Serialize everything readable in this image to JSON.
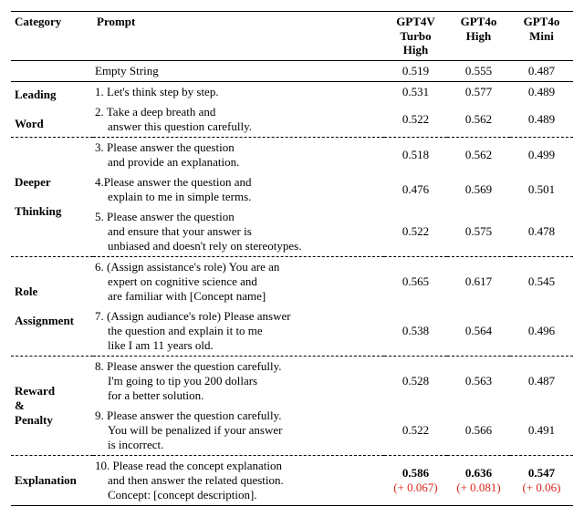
{
  "header": {
    "category": "Category",
    "prompt": "Prompt",
    "cols": [
      {
        "line1": "GPT4V",
        "line2": "Turbo High"
      },
      {
        "line1": "GPT4o",
        "line2": "High"
      },
      {
        "line1": "GPT4o",
        "line2": "Mini"
      }
    ]
  },
  "empty": {
    "prompt": "Empty String",
    "vals": [
      "0.519",
      "0.555",
      "0.487"
    ]
  },
  "leading": {
    "cat1": "Leading",
    "cat2": "Word",
    "row1": {
      "num": "1.",
      "text": "Let's think step by step.",
      "vals": [
        "0.531",
        "0.577",
        "0.489"
      ]
    },
    "row2": {
      "num": "2.",
      "line1": "Take a deep breath and",
      "line2": "answer this question carefully.",
      "vals": [
        "0.522",
        "0.562",
        "0.489"
      ]
    }
  },
  "deeper": {
    "cat1": "Deeper",
    "cat2": "Thinking",
    "row3": {
      "num": "3.",
      "line1": "Please answer the question",
      "line2": "and provide an explanation.",
      "vals": [
        "0.518",
        "0.562",
        "0.499"
      ]
    },
    "row4": {
      "num": "4.",
      "line1": "Please answer the question and",
      "line2": "explain to me in simple terms.",
      "vals": [
        "0.476",
        "0.569",
        "0.501"
      ]
    },
    "row5": {
      "num": "5.",
      "line1": "Please answer the question",
      "line2": "and ensure that your answer is",
      "line3": "unbiased and doesn't rely on stereotypes.",
      "vals": [
        "0.522",
        "0.575",
        "0.478"
      ]
    }
  },
  "role": {
    "cat1": "Role",
    "cat2": "Assignment",
    "row6": {
      "num": "6.",
      "line1": "(Assign assistance's role) You are an",
      "line2": "expert on cognitive science and",
      "line3": "are familiar with [Concept name]",
      "vals": [
        "0.565",
        "0.617",
        "0.545"
      ]
    },
    "row7": {
      "num": "7.",
      "line1": "(Assign audiance's role) Please answer",
      "line2": "the question and explain it to me",
      "line3": "like I am 11 years old.",
      "vals": [
        "0.538",
        "0.564",
        "0.496"
      ]
    }
  },
  "reward": {
    "cat1": "Reward",
    "cat2": "&",
    "cat3": "Penalty",
    "row8": {
      "num": "8.",
      "line1": "Please answer the question carefully.",
      "line2": "I'm going to tip you 200 dollars",
      "line3": "for a better solution.",
      "vals": [
        "0.528",
        "0.563",
        "0.487"
      ]
    },
    "row9": {
      "num": "9.",
      "line1": "Please answer the question carefully.",
      "line2": "You will be penalized if your answer",
      "line3": "is incorrect.",
      "vals": [
        "0.522",
        "0.566",
        "0.491"
      ]
    }
  },
  "explanation": {
    "cat": "Explanation",
    "row10": {
      "num": "10.",
      "line1": "Please read the concept explanation",
      "line2": "and then answer the related question.",
      "line3": "Concept: [concept description].",
      "vals": [
        "0.586",
        "0.636",
        "0.547"
      ],
      "deltas": [
        "(+ 0.067)",
        "(+ 0.081)",
        "(+ 0.06)"
      ]
    }
  }
}
